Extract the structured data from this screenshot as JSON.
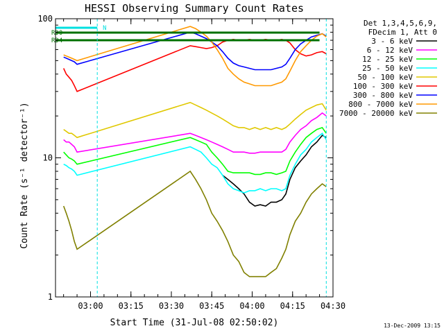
{
  "chart_data": {
    "type": "line",
    "title": "HESSI Observing Summary Count Rates",
    "xlabel": "Start Time (31-Jul-08 02:50:02)",
    "ylabel": "Count Rate (s⁻¹ detector⁻¹)",
    "yscale": "log",
    "ylim": [
      1,
      100
    ],
    "xlim_minutes": [
      -3,
      100
    ],
    "x_ticks": [
      {
        "label": "03:00",
        "minutes": 10
      },
      {
        "label": "03:15",
        "minutes": 25
      },
      {
        "label": "03:30",
        "minutes": 40
      },
      {
        "label": "03:45",
        "minutes": 55
      },
      {
        "label": "04:00",
        "minutes": 70
      },
      {
        "label": "04:15",
        "minutes": 85
      },
      {
        "label": "04:30",
        "minutes": 100
      }
    ],
    "y_ticks": [
      {
        "label": "1",
        "value": 1
      },
      {
        "label": "10",
        "value": 10
      },
      {
        "label": "100",
        "value": 100
      }
    ],
    "legend_header": [
      "Det 1,3,4,5,6,9,",
      "FDecim 1, Att 0"
    ],
    "legend_position": "right",
    "series": [
      {
        "name": "3 - 6 keV",
        "color": "#000000",
        "x": [
          0,
          1,
          2,
          3,
          4,
          5,
          47,
          49,
          51,
          53,
          55,
          57,
          59,
          61,
          63,
          65,
          67,
          69,
          71,
          73,
          75,
          77,
          79,
          81,
          82.5,
          84,
          86,
          88,
          90,
          92,
          94,
          96,
          97.5
        ],
        "y": [
          null,
          null,
          null,
          null,
          null,
          null,
          null,
          null,
          null,
          null,
          null,
          null,
          7.5,
          7,
          6.5,
          6,
          5.5,
          4.8,
          4.5,
          4.6,
          4.5,
          4.8,
          4.8,
          5.0,
          5.5,
          7,
          8.5,
          9.5,
          10.5,
          12,
          13,
          14.5,
          14
        ]
      },
      {
        "name": "6 - 12 keV",
        "color": "#ff00ff",
        "x": [
          0,
          1,
          2,
          3,
          4,
          5,
          47,
          49,
          51,
          53,
          55,
          57,
          59,
          61,
          63,
          65,
          67,
          69,
          71,
          73,
          75,
          77,
          79,
          81,
          82.5,
          84,
          86,
          88,
          90,
          92,
          94,
          96,
          97.5
        ],
        "y": [
          13.5,
          13,
          13,
          12.5,
          12,
          11,
          15,
          14.5,
          14,
          13.5,
          13,
          12.5,
          12,
          11.5,
          11,
          11,
          11,
          10.8,
          10.8,
          11,
          11,
          11,
          11,
          11,
          11.5,
          13,
          14.5,
          16,
          17,
          18.5,
          19.5,
          21,
          20
        ]
      },
      {
        "name": "12 - 25 keV",
        "color": "#00ff00",
        "x": [
          0,
          1,
          2,
          3,
          4,
          5,
          47,
          49,
          51,
          53,
          55,
          57,
          59,
          61,
          63,
          65,
          67,
          69,
          71,
          73,
          75,
          77,
          79,
          81,
          82.5,
          84,
          86,
          88,
          90,
          92,
          94,
          96,
          97.5
        ],
        "y": [
          11,
          10.5,
          10,
          9.8,
          9.5,
          9,
          14,
          13.5,
          13,
          12.5,
          11,
          10,
          9,
          8,
          7.8,
          7.8,
          7.8,
          7.8,
          7.6,
          7.6,
          7.8,
          7.8,
          7.6,
          7.8,
          8,
          9.5,
          11,
          12.5,
          14,
          15,
          16,
          16.5,
          15
        ]
      },
      {
        "name": "25 - 50 keV",
        "color": "#00ffff",
        "x": [
          0,
          1,
          2,
          3,
          4,
          5,
          47,
          49,
          51,
          53,
          55,
          57,
          59,
          61,
          63,
          65,
          67,
          69,
          71,
          73,
          75,
          77,
          79,
          81,
          82.5,
          84,
          86,
          88,
          90,
          92,
          94,
          96,
          97.5
        ],
        "y": [
          9,
          8.8,
          8.5,
          8.3,
          8,
          7.5,
          12,
          11.5,
          11,
          10,
          9,
          8.5,
          7.5,
          6.5,
          6,
          5.8,
          5.6,
          5.8,
          5.8,
          6,
          5.8,
          6,
          6,
          5.8,
          6,
          7.5,
          9,
          10.5,
          11.5,
          13,
          14,
          15,
          13.5
        ]
      },
      {
        "name": "50 - 100 keV",
        "color": "#e0c800",
        "x": [
          0,
          1,
          2,
          3,
          4,
          5,
          47,
          49,
          51,
          53,
          55,
          57,
          59,
          61,
          63,
          65,
          67,
          69,
          71,
          73,
          75,
          77,
          79,
          81,
          82.5,
          84,
          86,
          88,
          90,
          92,
          94,
          96,
          97.5
        ],
        "y": [
          16,
          15.5,
          15,
          15,
          14.5,
          14,
          25,
          24,
          23,
          22,
          21,
          20,
          19,
          18,
          17,
          16.5,
          16.5,
          16,
          16.5,
          16,
          16.5,
          16,
          16.5,
          16,
          16.5,
          17.5,
          19,
          20.5,
          22,
          23,
          24,
          24.5,
          22
        ]
      },
      {
        "name": "100 - 300 keV",
        "color": "#ff0000",
        "x": [
          0,
          1,
          2,
          3,
          4,
          5,
          47,
          49,
          51,
          53,
          55,
          57,
          59,
          61,
          63,
          65,
          67,
          69,
          71,
          73,
          75,
          77,
          79,
          81,
          82.5,
          84,
          86,
          88,
          90,
          92,
          94,
          96,
          97.5
        ],
        "y": [
          44,
          40,
          38,
          36,
          33,
          30,
          64,
          63,
          62,
          61,
          62,
          64,
          68,
          70,
          71,
          70,
          70,
          71,
          70,
          70,
          71,
          70,
          70,
          71,
          70,
          67,
          60,
          56,
          54,
          55,
          57,
          58,
          56
        ]
      },
      {
        "name": "300 - 800 keV",
        "color": "#0000ff",
        "x": [
          0,
          1,
          2,
          3,
          4,
          5,
          47,
          49,
          51,
          53,
          55,
          57,
          59,
          61,
          63,
          65,
          67,
          69,
          71,
          73,
          75,
          77,
          79,
          81,
          82.5,
          84,
          86,
          88,
          90,
          92,
          94,
          96,
          97.5
        ],
        "y": [
          53,
          52,
          51,
          50,
          49,
          47,
          80,
          78,
          75,
          72,
          68,
          64,
          58,
          52,
          48,
          46,
          45,
          44,
          43,
          43,
          43,
          43,
          44,
          45,
          47,
          52,
          60,
          66,
          70,
          74,
          76,
          78,
          75
        ]
      },
      {
        "name": "800 - 7000 keV",
        "color": "#ff9900",
        "x": [
          0,
          1,
          2,
          3,
          4,
          5,
          47,
          49,
          51,
          53,
          55,
          57,
          59,
          61,
          63,
          65,
          67,
          69,
          71,
          73,
          75,
          77,
          79,
          81,
          82.5,
          84,
          86,
          88,
          90,
          92,
          94,
          96,
          97.5
        ],
        "y": [
          55,
          54,
          53,
          52,
          51,
          50,
          88,
          85,
          80,
          75,
          68,
          60,
          52,
          44,
          40,
          37,
          35,
          34,
          33,
          33,
          33,
          33,
          34,
          35,
          37,
          42,
          50,
          58,
          64,
          70,
          75,
          78,
          74
        ]
      },
      {
        "name": "7000 - 20000 keV",
        "color": "#808000",
        "x": [
          0,
          1,
          2,
          3,
          4,
          5,
          47,
          49,
          51,
          53,
          55,
          57,
          59,
          61,
          63,
          65,
          67,
          69,
          71,
          73,
          75,
          77,
          79,
          81,
          82.5,
          84,
          86,
          88,
          90,
          92,
          94,
          96,
          97.5
        ],
        "y": [
          4.5,
          4,
          3.5,
          3,
          2.5,
          2.2,
          8,
          7,
          6,
          5,
          4,
          3.5,
          3,
          2.5,
          2,
          1.8,
          1.5,
          1.4,
          1.4,
          1.4,
          1.4,
          1.5,
          1.6,
          1.9,
          2.2,
          2.8,
          3.5,
          4,
          4.8,
          5.5,
          6,
          6.5,
          6.2
        ]
      }
    ],
    "annotation_bars": [
      {
        "label": "N",
        "color": "#00e0e0"
      },
      {
        "label": "RD0",
        "color": "#007000"
      },
      {
        "label": "RD4",
        "color": "#007000"
      }
    ],
    "footer": "13-Dec-2009 13:15"
  }
}
